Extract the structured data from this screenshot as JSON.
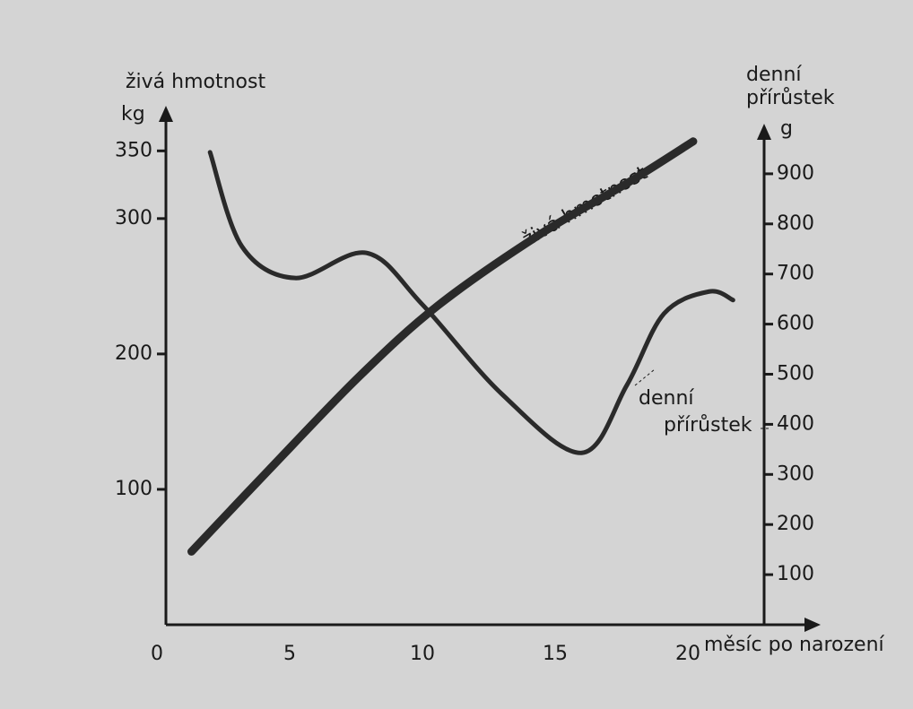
{
  "chart_data": {
    "type": "line",
    "xlabel": "měsíc po narození",
    "ylabel": "živá hmotnost",
    "yunit": "kg",
    "y2label": [
      "denní",
      "přírůstek"
    ],
    "y2unit": "g",
    "xlim": [
      0,
      25
    ],
    "xticks": [
      0,
      5,
      10,
      15,
      20
    ],
    "ylim": [
      0,
      380
    ],
    "yticks": [
      100,
      200,
      300,
      350
    ],
    "y2lim": [
      0,
      1000
    ],
    "y2ticks": [
      100,
      200,
      300,
      400,
      500,
      600,
      700,
      800,
      900
    ],
    "series": [
      {
        "color": "#2a2a2a",
        "x": [
          1.3,
          4.2,
          7.6,
          10.6,
          14.4,
          17.7,
          20.2
        ],
        "values": [
          54,
          114,
          183,
          236,
          288,
          326,
          357
        ]
      },
      {
        "color": "#2a2a2a",
        "axis": "y2",
        "x": [
          2.0,
          3.2,
          5.2,
          7.9,
          10,
          13,
          16,
          17.7,
          19.1,
          20.8,
          21.7
        ],
        "values": [
          943,
          755,
          692,
          742,
          639,
          460,
          343,
          478,
          621,
          665,
          648
        ]
      }
    ],
    "annotations": [
      {
        "text": "živá hmotnost"
      },
      {
        "lines": [
          "denní",
          "přírůstek"
        ]
      }
    ]
  }
}
